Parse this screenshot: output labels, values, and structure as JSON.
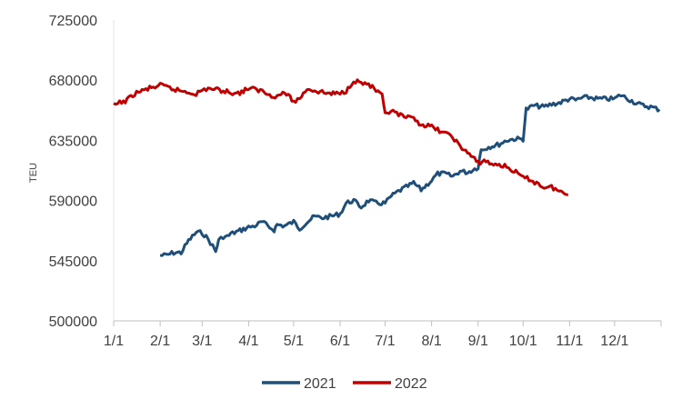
{
  "chart_data": {
    "type": "line",
    "title": "",
    "xlabel": "",
    "ylabel": "TEU",
    "ylim": [
      500000,
      725000
    ],
    "yticks": [
      "500000",
      "545000",
      "590000",
      "635000",
      "680000",
      "725000"
    ],
    "xticks": [
      "1/1",
      "2/1",
      "3/1",
      "4/1",
      "5/1",
      "6/1",
      "7/1",
      "8/1",
      "9/1",
      "10/1",
      "11/1",
      "12/1"
    ],
    "grid": false,
    "legend_position": "bottom",
    "colors": {
      "2021": "#1f4e79",
      "2022": "#c00000"
    },
    "series": [
      {
        "name": "2021",
        "x": [
          "2/1",
          "2/5",
          "2/10",
          "2/15",
          "2/20",
          "2/25",
          "3/1",
          "3/5",
          "3/8",
          "3/10",
          "3/12",
          "3/15",
          "3/18",
          "3/20",
          "3/25",
          "4/1",
          "4/5",
          "4/10",
          "4/15",
          "4/18",
          "4/20",
          "4/25",
          "5/1",
          "5/5",
          "5/10",
          "5/15",
          "5/20",
          "5/25",
          "6/1",
          "6/5",
          "6/10",
          "6/15",
          "6/20",
          "6/25",
          "7/1",
          "7/5",
          "7/10",
          "7/15",
          "7/20",
          "7/25",
          "8/1",
          "8/5",
          "8/10",
          "8/15",
          "8/20",
          "8/25",
          "9/1",
          "9/3",
          "9/8",
          "9/15",
          "9/20",
          "9/25",
          "10/1",
          "10/3",
          "10/8",
          "10/15",
          "10/20",
          "10/25",
          "11/1",
          "11/5",
          "11/10",
          "11/15",
          "11/20",
          "11/25",
          "12/1",
          "12/5",
          "12/10",
          "12/15",
          "12/20",
          "12/25",
          "12/31"
        ],
        "values": [
          549000,
          549000,
          551000,
          551000,
          560000,
          566000,
          566000,
          561000,
          556000,
          552000,
          560000,
          563000,
          563000,
          565000,
          567000,
          570000,
          571000,
          574000,
          570000,
          568000,
          572000,
          571000,
          574000,
          569000,
          574000,
          578000,
          577000,
          578000,
          580000,
          588000,
          590000,
          585000,
          590000,
          588000,
          588000,
          593000,
          597000,
          600000,
          603000,
          598000,
          605000,
          610000,
          610000,
          608000,
          612000,
          611000,
          615000,
          628000,
          630000,
          632000,
          635000,
          636000,
          636000,
          658000,
          661000,
          660000,
          662000,
          663000,
          666000,
          665000,
          667000,
          667000,
          666000,
          666000,
          666000,
          669000,
          666000,
          663000,
          661000,
          660000,
          658000
        ]
      },
      {
        "name": "2022",
        "x": [
          "1/1",
          "1/5",
          "1/10",
          "1/15",
          "1/20",
          "1/25",
          "2/1",
          "2/5",
          "2/10",
          "2/15",
          "2/20",
          "2/25",
          "3/1",
          "3/5",
          "3/10",
          "3/15",
          "3/20",
          "3/25",
          "4/1",
          "4/5",
          "4/10",
          "4/15",
          "4/20",
          "4/25",
          "5/1",
          "5/5",
          "5/10",
          "5/15",
          "5/20",
          "5/25",
          "6/1",
          "6/5",
          "6/10",
          "6/15",
          "6/20",
          "6/25",
          "6/29",
          "7/1",
          "7/5",
          "7/10",
          "7/15",
          "7/20",
          "7/25",
          "8/1",
          "8/5",
          "8/10",
          "8/15",
          "8/20",
          "8/25",
          "9/1",
          "9/5",
          "9/10",
          "9/15",
          "9/20",
          "9/25",
          "10/1",
          "10/5",
          "10/10",
          "10/15",
          "10/20",
          "10/25",
          "10/31"
        ],
        "values": [
          661000,
          663000,
          665000,
          670000,
          672000,
          674000,
          676000,
          675000,
          673000,
          672000,
          671000,
          670000,
          672000,
          674000,
          673000,
          672000,
          671000,
          670000,
          674000,
          673000,
          672000,
          669000,
          668000,
          671000,
          664000,
          666000,
          674000,
          672000,
          671000,
          670000,
          670000,
          672000,
          680000,
          678000,
          677000,
          672000,
          668000,
          654000,
          657000,
          654000,
          652000,
          651000,
          647000,
          645000,
          643000,
          640000,
          638000,
          630000,
          626000,
          618000,
          620000,
          617000,
          617000,
          615000,
          612000,
          607000,
          606000,
          603000,
          600000,
          600000,
          597000,
          594000
        ]
      }
    ]
  }
}
